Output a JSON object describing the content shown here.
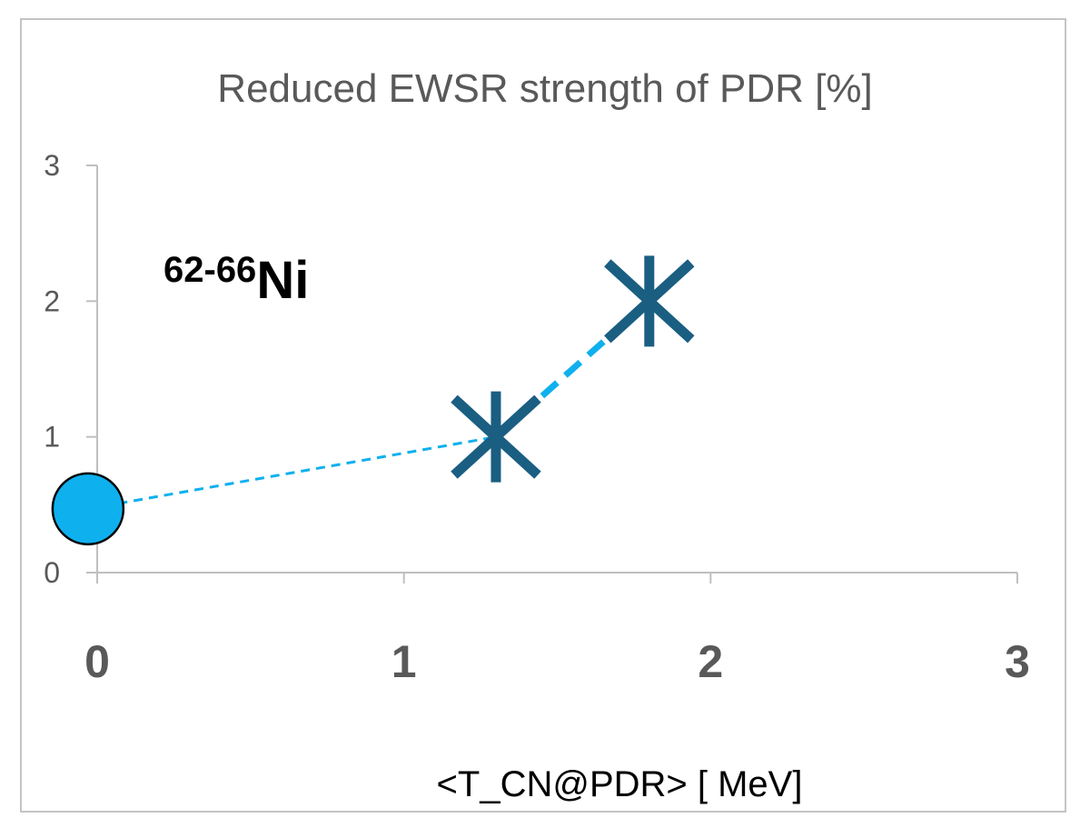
{
  "chart_data": {
    "type": "scatter",
    "title": "Reduced EWSR strength of PDR [%]",
    "xlabel": "<T_CN@PDR> [ MeV]",
    "ylabel": "",
    "xlim": [
      0,
      3
    ],
    "ylim": [
      0,
      3
    ],
    "x_ticks": [
      "0",
      "1",
      "2",
      "3"
    ],
    "y_ticks": [
      "0",
      "1",
      "2",
      "3"
    ],
    "grid": false,
    "annotation": {
      "sup": "62-66",
      "main": "Ni"
    },
    "series": [
      {
        "marker": "circle",
        "color": "#0fb0ee",
        "points": [
          {
            "x": -0.03,
            "y": 0.47
          }
        ]
      },
      {
        "marker": "asterisk",
        "color": "#1a5e82",
        "points": [
          {
            "x": 1.3,
            "y": 1.0
          },
          {
            "x": 1.8,
            "y": 2.0
          }
        ]
      }
    ],
    "lines": [
      {
        "style": "dashed-thin",
        "color": "#0fb0ee",
        "from": {
          "x": -0.03,
          "y": 0.47
        },
        "to": {
          "x": 1.3,
          "y": 1.0
        }
      },
      {
        "style": "dashed-thick",
        "color": "#0fb0ee",
        "from": {
          "x": 1.3,
          "y": 1.0
        },
        "to": {
          "x": 1.8,
          "y": 2.0
        }
      }
    ]
  }
}
